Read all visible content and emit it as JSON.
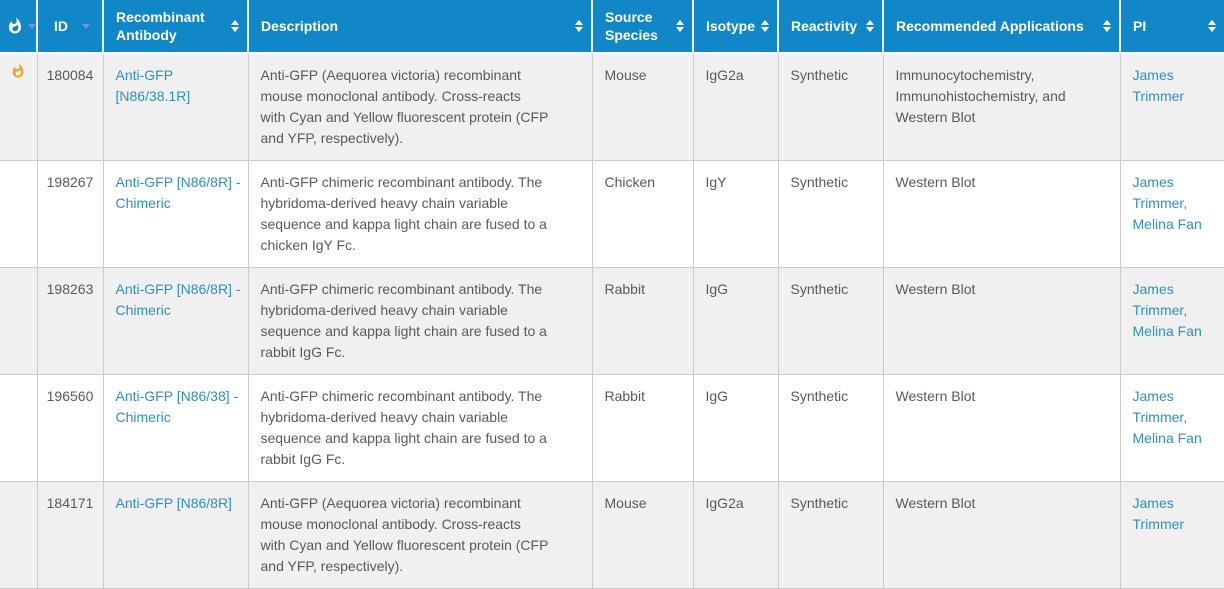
{
  "colors": {
    "header_bg": "#1187c8",
    "header_text": "#ffffff",
    "link": "#2e8fbe",
    "text": "#58595b",
    "row_stripe": "#f0f0f0",
    "row_white": "#ffffff",
    "border": "#cccccc",
    "flame": "#f0a232",
    "sorted_arrow": "#7b90d8",
    "page_bg": "#e8e8e8"
  },
  "pi_separator": ", ",
  "table": {
    "columns": [
      {
        "key": "hot",
        "label": "",
        "icon": "flame-icon",
        "sort": "desc"
      },
      {
        "key": "id",
        "label": "ID",
        "sort": "desc",
        "center": true
      },
      {
        "key": "antibody",
        "label": "Recombinant Antibody",
        "sort": "both"
      },
      {
        "key": "desc",
        "label": "Description",
        "sort": "both"
      },
      {
        "key": "species",
        "label": "Source Species",
        "sort": "both"
      },
      {
        "key": "isotype",
        "label": "Isotype",
        "sort": "both"
      },
      {
        "key": "reactivity",
        "label": "Reactivity",
        "sort": "both"
      },
      {
        "key": "apps",
        "label": "Recommended Applications",
        "sort": "both"
      },
      {
        "key": "pi",
        "label": "PI",
        "sort": "both"
      }
    ],
    "rows": [
      {
        "hot": true,
        "id": "180084",
        "antibody": "Anti-GFP [N86/38.1R]",
        "desc": "Anti-GFP (Aequorea victoria) recombinant mouse monoclonal antibody. Cross-reacts with Cyan and Yellow fluorescent protein (CFP and YFP, respectively).",
        "species": "Mouse",
        "isotype": "IgG2a",
        "reactivity": "Synthetic",
        "apps": "Immunocytochemistry, Immunohistochemistry, and Western Blot",
        "pi": [
          "James Trimmer"
        ]
      },
      {
        "hot": false,
        "id": "198267",
        "antibody": "Anti-GFP [N86/8R] - Chimeric",
        "desc": "Anti-GFP chimeric recombinant antibody. The hybridoma-derived heavy chain variable sequence and kappa light chain are fused to a chicken IgY Fc.",
        "species": "Chicken",
        "isotype": "IgY",
        "reactivity": "Synthetic",
        "apps": "Western Blot",
        "pi": [
          "James Trimmer",
          "Melina Fan"
        ]
      },
      {
        "hot": false,
        "id": "198263",
        "antibody": "Anti-GFP [N86/8R] - Chimeric",
        "desc": "Anti-GFP chimeric recombinant antibody. The hybridoma-derived heavy chain variable sequence and kappa light chain are fused to a rabbit IgG Fc.",
        "species": "Rabbit",
        "isotype": "IgG",
        "reactivity": "Synthetic",
        "apps": "Western Blot",
        "pi": [
          "James Trimmer",
          "Melina Fan"
        ]
      },
      {
        "hot": false,
        "id": "196560",
        "antibody": "Anti-GFP [N86/38] - Chimeric",
        "desc": "Anti-GFP chimeric recombinant antibody. The hybridoma-derived heavy chain variable sequence and kappa light chain are fused to a rabbit IgG Fc.",
        "species": "Rabbit",
        "isotype": "IgG",
        "reactivity": "Synthetic",
        "apps": "Western Blot",
        "pi": [
          "James Trimmer",
          "Melina Fan"
        ]
      },
      {
        "hot": false,
        "id": "184171",
        "antibody": "Anti-GFP [N86/8R]",
        "desc": "Anti-GFP (Aequorea victoria) recombinant mouse monoclonal antibody. Cross-reacts with Cyan and Yellow fluorescent protein (CFP and YFP, respectively).",
        "species": "Mouse",
        "isotype": "IgG2a",
        "reactivity": "Synthetic",
        "apps": "Western Blot",
        "pi": [
          "James Trimmer"
        ]
      }
    ]
  }
}
